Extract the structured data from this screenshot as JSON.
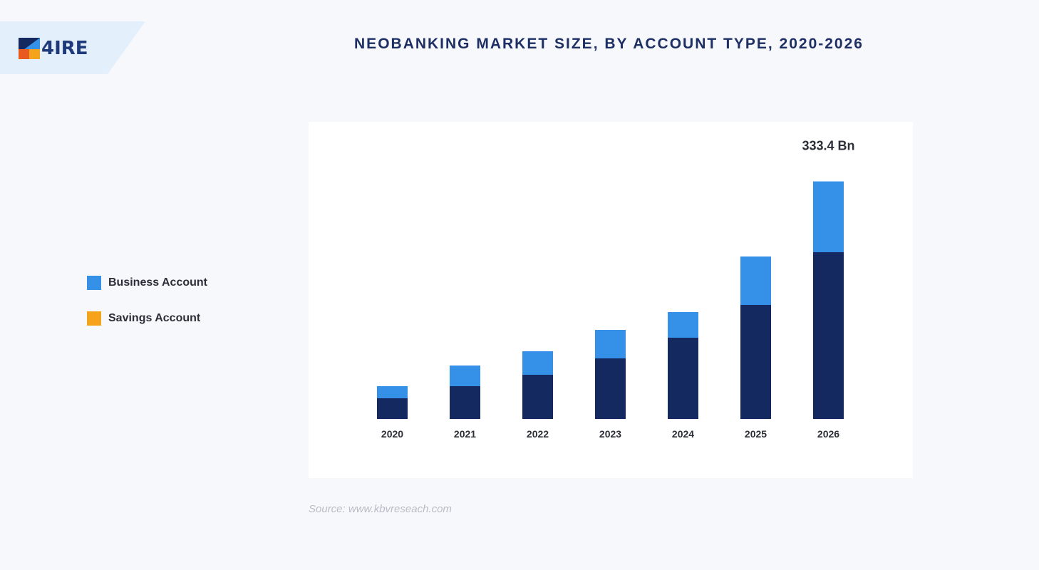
{
  "logo": {
    "text": "4IRE"
  },
  "legend": [
    {
      "label": "Business Account",
      "color": "#3590e8"
    },
    {
      "label": "Savings Account",
      "color": "#f5a31a"
    }
  ],
  "source": "Source: www.kbvreseach.com",
  "colors": {
    "savings_bar": "#13295f",
    "business_bar": "#3590e8",
    "title": "#1e2f63",
    "background": "#f6f8fc"
  },
  "chart_data": {
    "type": "bar",
    "stacked": true,
    "title": "NEOBANKING MARKET SIZE, BY ACCOUNT TYPE, 2020-2026",
    "categories": [
      "2020",
      "2021",
      "2022",
      "2023",
      "2024",
      "2025",
      "2026"
    ],
    "series": [
      {
        "name": "Savings Account",
        "color": "#13295f",
        "values": [
          29,
          46,
          62,
          85,
          114,
          160,
          234
        ]
      },
      {
        "name": "Business Account",
        "color": "#3590e8",
        "values": [
          17,
          29,
          33,
          40,
          36,
          68,
          99.4
        ]
      }
    ],
    "annotations": [
      {
        "category": "2026",
        "text": "333.4 Bn"
      }
    ],
    "ylim": [
      0,
      340
    ],
    "xlabel": "",
    "ylabel": "",
    "grid": false,
    "legend_position": "left"
  }
}
